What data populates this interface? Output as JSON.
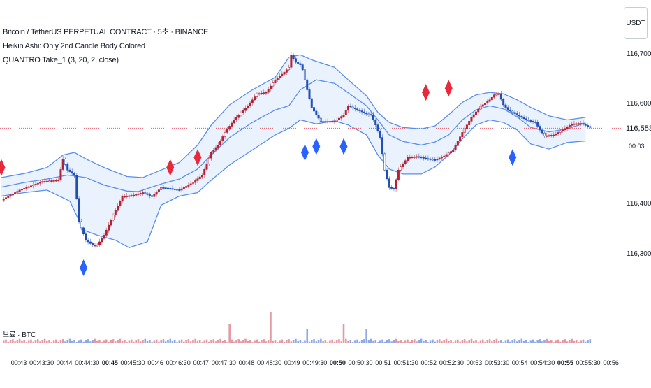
{
  "legend": {
    "symbol": "Bitcoin / TetherUS PERPETUAL CONTRACT · 5초 · BINANCE",
    "indicator1": "Heikin Ashi: Only 2nd Candle Body Colored",
    "indicator2": "QUANTRO Take_1 (3, 20, 2, close)"
  },
  "price_axis": {
    "currency": "USDT",
    "current_price": "116,553.5",
    "countdown": "00:03"
  },
  "volume_pane": {
    "label": "보료 · BTC"
  },
  "colors": {
    "bull": "#b22234",
    "bear": "#1f4fb5",
    "band_fill": "#e8f1fd",
    "band_line": "#5b8def",
    "price_line": "#e05e6e",
    "marker_red": "#e8283b",
    "marker_blue": "#2962ff",
    "vol_bull": "#e39aa3",
    "vol_bear": "#8fa9e6"
  },
  "chart_data": {
    "type": "candlestick",
    "symbol": "BTCUSDT.P",
    "interval": "5s",
    "price_ticks": [
      116700,
      116600,
      116553.5,
      116400,
      116300
    ],
    "price_tick_labels": [
      "116,700.0",
      "116,600.0",
      "116,553.5",
      "116,400.0",
      "116,300.0"
    ],
    "x_tick_labels": [
      "00:43",
      "00:43:30",
      "00:44",
      "00:44:30",
      "00:45",
      "00:45:30",
      "00:46",
      "00:46:30",
      "00:47",
      "00:47:30",
      "00:48",
      "00:48:30",
      "00:49",
      "00:49:30",
      "00:50",
      "00:50:30",
      "00:51",
      "00:51:30",
      "00:52",
      "00:52:30",
      "00:53",
      "00:53:30",
      "00:54",
      "00:54:30",
      "00:55",
      "00:55:30",
      "00:56"
    ],
    "bold_x_ticks": [
      "00:45",
      "00:50",
      "00:55"
    ],
    "current_price": 116553.5,
    "band_mid": [
      [
        0,
        116436
      ],
      [
        10,
        116445
      ],
      [
        20,
        116452
      ],
      [
        29,
        116460
      ],
      [
        37,
        116455
      ],
      [
        45,
        116440
      ],
      [
        55,
        116428
      ],
      [
        60,
        116427
      ],
      [
        70,
        116442
      ],
      [
        78,
        116452
      ],
      [
        86,
        116472
      ],
      [
        92,
        116500
      ],
      [
        100,
        116535
      ],
      [
        110,
        116565
      ],
      [
        120,
        116590
      ],
      [
        126,
        116598
      ],
      [
        131,
        116630
      ],
      [
        138,
        116650
      ],
      [
        146,
        116643
      ],
      [
        152,
        116624
      ],
      [
        160,
        116598
      ],
      [
        165,
        116570
      ],
      [
        170,
        116540
      ],
      [
        176,
        116527
      ],
      [
        184,
        116520
      ],
      [
        190,
        116526
      ],
      [
        196,
        116540
      ],
      [
        202,
        116570
      ],
      [
        208,
        116590
      ],
      [
        214,
        116598
      ],
      [
        220,
        116592
      ],
      [
        226,
        116576
      ],
      [
        232,
        116555
      ],
      [
        240,
        116546
      ],
      [
        248,
        116552
      ],
      [
        256,
        116564
      ]
    ],
    "band_upper": [
      [
        0,
        116455
      ],
      [
        10,
        116463
      ],
      [
        20,
        116475
      ],
      [
        27,
        116500
      ],
      [
        32,
        116505
      ],
      [
        38,
        116490
      ],
      [
        45,
        116475
      ],
      [
        55,
        116457
      ],
      [
        62,
        116455
      ],
      [
        70,
        116470
      ],
      [
        78,
        116485
      ],
      [
        86,
        116520
      ],
      [
        92,
        116560
      ],
      [
        100,
        116600
      ],
      [
        110,
        116630
      ],
      [
        120,
        116655
      ],
      [
        126,
        116695
      ],
      [
        131,
        116700
      ],
      [
        136,
        116690
      ],
      [
        146,
        116675
      ],
      [
        152,
        116650
      ],
      [
        160,
        116618
      ],
      [
        165,
        116585
      ],
      [
        170,
        116565
      ],
      [
        176,
        116555
      ],
      [
        184,
        116552
      ],
      [
        190,
        116558
      ],
      [
        196,
        116580
      ],
      [
        202,
        116605
      ],
      [
        208,
        116620
      ],
      [
        214,
        116625
      ],
      [
        220,
        116622
      ],
      [
        226,
        116610
      ],
      [
        232,
        116595
      ],
      [
        240,
        116578
      ],
      [
        248,
        116570
      ],
      [
        256,
        116575
      ]
    ],
    "band_lower": [
      [
        0,
        116418
      ],
      [
        10,
        116425
      ],
      [
        20,
        116430
      ],
      [
        30,
        116408
      ],
      [
        36,
        116350
      ],
      [
        42,
        116340
      ],
      [
        50,
        116330
      ],
      [
        56,
        116315
      ],
      [
        64,
        116327
      ],
      [
        70,
        116400
      ],
      [
        78,
        116418
      ],
      [
        86,
        116425
      ],
      [
        92,
        116450
      ],
      [
        100,
        116480
      ],
      [
        110,
        116510
      ],
      [
        120,
        116540
      ],
      [
        126,
        116553
      ],
      [
        131,
        116570
      ],
      [
        138,
        116562
      ],
      [
        146,
        116568
      ],
      [
        152,
        116560
      ],
      [
        160,
        116540
      ],
      [
        165,
        116500
      ],
      [
        170,
        116472
      ],
      [
        176,
        116462
      ],
      [
        184,
        116462
      ],
      [
        190,
        116476
      ],
      [
        196,
        116500
      ],
      [
        202,
        116532
      ],
      [
        208,
        116560
      ],
      [
        214,
        116570
      ],
      [
        220,
        116565
      ],
      [
        226,
        116550
      ],
      [
        232,
        116522
      ],
      [
        240,
        116512
      ],
      [
        248,
        116525
      ],
      [
        256,
        116528
      ]
    ],
    "price_path": [
      [
        0,
        116410
      ],
      [
        8,
        116430
      ],
      [
        18,
        116447
      ],
      [
        25,
        116450
      ],
      [
        27,
        116492
      ],
      [
        29,
        116470
      ],
      [
        32,
        116460
      ],
      [
        34,
        116367
      ],
      [
        37,
        116330
      ],
      [
        40,
        116320
      ],
      [
        42,
        116320
      ],
      [
        45,
        116340
      ],
      [
        49,
        116380
      ],
      [
        53,
        116417
      ],
      [
        58,
        116420
      ],
      [
        62,
        116425
      ],
      [
        66,
        116417
      ],
      [
        70,
        116435
      ],
      [
        74,
        116433
      ],
      [
        78,
        116430
      ],
      [
        84,
        116445
      ],
      [
        88,
        116460
      ],
      [
        92,
        116505
      ],
      [
        95,
        116520
      ],
      [
        98,
        116545
      ],
      [
        102,
        116570
      ],
      [
        108,
        116598
      ],
      [
        112,
        116622
      ],
      [
        116,
        116625
      ],
      [
        120,
        116650
      ],
      [
        124,
        116665
      ],
      [
        126,
        116675
      ],
      [
        127,
        116700
      ],
      [
        129,
        116685
      ],
      [
        131,
        116680
      ],
      [
        132,
        116670
      ],
      [
        134,
        116630
      ],
      [
        136,
        116595
      ],
      [
        138,
        116580
      ],
      [
        140,
        116567
      ],
      [
        143,
        116567
      ],
      [
        146,
        116567
      ],
      [
        150,
        116580
      ],
      [
        152,
        116598
      ],
      [
        156,
        116590
      ],
      [
        160,
        116582
      ],
      [
        162,
        116580
      ],
      [
        164,
        116560
      ],
      [
        166,
        116535
      ],
      [
        168,
        116470
      ],
      [
        170,
        116435
      ],
      [
        172,
        116432
      ],
      [
        174,
        116470
      ],
      [
        178,
        116495
      ],
      [
        182,
        116497
      ],
      [
        186,
        116493
      ],
      [
        190,
        116490
      ],
      [
        194,
        116498
      ],
      [
        198,
        116510
      ],
      [
        202,
        116545
      ],
      [
        206,
        116575
      ],
      [
        210,
        116597
      ],
      [
        214,
        116610
      ],
      [
        216,
        116620
      ],
      [
        218,
        116622
      ],
      [
        220,
        116600
      ],
      [
        222,
        116590
      ],
      [
        226,
        116580
      ],
      [
        230,
        116570
      ],
      [
        234,
        116565
      ],
      [
        236,
        116550
      ],
      [
        238,
        116538
      ],
      [
        242,
        116540
      ],
      [
        246,
        116550
      ],
      [
        250,
        116562
      ],
      [
        254,
        116563
      ],
      [
        258,
        116555
      ]
    ],
    "price_path_unit": "x is bar index (5-second bars), y is price",
    "signals": [
      {
        "type": "sell",
        "color": "red",
        "bar": 0,
        "price": 116475
      },
      {
        "type": "buy",
        "color": "blue",
        "bar": 36,
        "price": 116275
      },
      {
        "type": "sell",
        "color": "red",
        "bar": 74,
        "price": 116475
      },
      {
        "type": "sell",
        "color": "red",
        "bar": 86,
        "price": 116495
      },
      {
        "type": "buy",
        "color": "blue",
        "bar": 133,
        "price": 116505
      },
      {
        "type": "buy",
        "color": "blue",
        "bar": 138,
        "price": 116517
      },
      {
        "type": "buy",
        "color": "blue",
        "bar": 150,
        "price": 116517
      },
      {
        "type": "sell",
        "color": "red",
        "bar": 186,
        "price": 116625
      },
      {
        "type": "sell",
        "color": "red",
        "bar": 196,
        "price": 116633
      },
      {
        "type": "buy",
        "color": "blue",
        "bar": 224,
        "price": 116495
      }
    ],
    "volume_spikes": [
      {
        "bar": 100,
        "ratio": 0.6
      },
      {
        "bar": 118,
        "ratio": 1.0
      },
      {
        "bar": 134,
        "ratio": 0.45
      },
      {
        "bar": 150,
        "ratio": 0.6
      },
      {
        "bar": 160,
        "ratio": 0.45
      }
    ]
  }
}
